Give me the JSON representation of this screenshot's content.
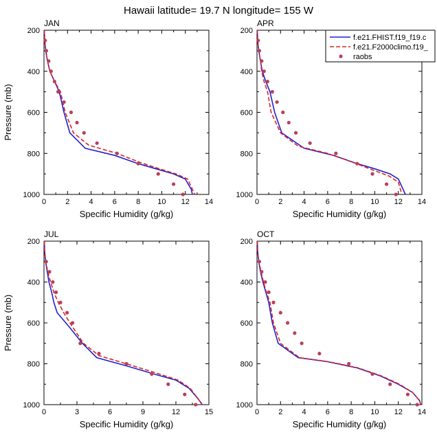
{
  "title": "Hawaii  latitude= 19.7 N longitude= 155 W",
  "legend": {
    "position": "top-right of APR panel",
    "entries": [
      {
        "label": "f.e21.FHIST.f19_f19.c",
        "color": "#1f1fd0",
        "style": "solid"
      },
      {
        "label": "f.e21.F2000climo.f19_",
        "color": "#dd2222",
        "style": "dashed"
      },
      {
        "label": "raobs",
        "color": "#b84058",
        "style": "dots"
      }
    ]
  },
  "chart_data": [
    {
      "type": "line",
      "panel_label": "JAN",
      "xlabel": "Specific Humidity (g/kg)",
      "ylabel": "Pressure (mb)",
      "xlim": [
        0,
        14
      ],
      "ylim": [
        1000,
        200
      ],
      "xticks": [
        "0",
        "2",
        "4",
        "6",
        "8",
        "10",
        "12",
        "14"
      ],
      "yticks": [
        "200",
        "400",
        "600",
        "800",
        "1000"
      ],
      "series": [
        {
          "name": "f.e21.FHIST.f19_f19.c",
          "points": [
            [
              0.03,
              200
            ],
            [
              0.06,
              250
            ],
            [
              0.15,
              300
            ],
            [
              0.3,
              350
            ],
            [
              0.5,
              400
            ],
            [
              0.9,
              450
            ],
            [
              1.3,
              500
            ],
            [
              1.7,
              600
            ],
            [
              2.2,
              700
            ],
            [
              3.5,
              775
            ],
            [
              6.0,
              810
            ],
            [
              8.0,
              850
            ],
            [
              9.5,
              875
            ],
            [
              11.0,
              900
            ],
            [
              12.0,
              925
            ],
            [
              12.5,
              975
            ],
            [
              12.6,
              1000
            ]
          ]
        },
        {
          "name": "f.e21.F2000climo.f19_",
          "points": [
            [
              0.03,
              200
            ],
            [
              0.06,
              250
            ],
            [
              0.15,
              300
            ],
            [
              0.3,
              350
            ],
            [
              0.5,
              400
            ],
            [
              0.9,
              450
            ],
            [
              1.4,
              500
            ],
            [
              1.8,
              600
            ],
            [
              2.5,
              700
            ],
            [
              3.8,
              760
            ],
            [
              6.2,
              800
            ],
            [
              8.2,
              845
            ],
            [
              9.8,
              875
            ],
            [
              11.2,
              900
            ],
            [
              12.2,
              925
            ],
            [
              12.6,
              975
            ],
            [
              12.8,
              1000
            ]
          ]
        },
        {
          "name": "raobs",
          "points": [
            [
              0.1,
              250
            ],
            [
              0.2,
              300
            ],
            [
              0.4,
              350
            ],
            [
              0.6,
              400
            ],
            [
              0.9,
              450
            ],
            [
              1.2,
              500
            ],
            [
              1.7,
              550
            ],
            [
              2.3,
              600
            ],
            [
              2.8,
              650
            ],
            [
              3.4,
              700
            ],
            [
              4.5,
              750
            ],
            [
              6.2,
              800
            ],
            [
              8.0,
              850
            ],
            [
              9.7,
              900
            ],
            [
              11.0,
              950
            ],
            [
              11.8,
              1000
            ]
          ]
        }
      ]
    },
    {
      "type": "line",
      "panel_label": "APR",
      "xlabel": "Specific Humidity (g/kg)",
      "ylabel": "",
      "xlim": [
        0,
        14
      ],
      "ylim": [
        1000,
        200
      ],
      "xticks": [
        "0",
        "2",
        "4",
        "6",
        "8",
        "10",
        "12",
        "14"
      ],
      "yticks": [
        "200",
        "400",
        "600",
        "800",
        "1000"
      ],
      "series": [
        {
          "name": "f.e21.FHIST.f19_f19.c",
          "points": [
            [
              0.03,
              200
            ],
            [
              0.06,
              250
            ],
            [
              0.15,
              300
            ],
            [
              0.3,
              350
            ],
            [
              0.45,
              400
            ],
            [
              0.75,
              450
            ],
            [
              1.1,
              500
            ],
            [
              1.5,
              600
            ],
            [
              2.1,
              700
            ],
            [
              4.0,
              775
            ],
            [
              6.5,
              810
            ],
            [
              8.5,
              850
            ],
            [
              10.0,
              875
            ],
            [
              11.3,
              900
            ],
            [
              12.0,
              925
            ],
            [
              12.4,
              975
            ],
            [
              12.6,
              1000
            ]
          ]
        },
        {
          "name": "f.e21.F2000climo.f19_",
          "points": [
            [
              0.03,
              200
            ],
            [
              0.06,
              250
            ],
            [
              0.15,
              300
            ],
            [
              0.3,
              350
            ],
            [
              0.4,
              400
            ],
            [
              0.6,
              450
            ],
            [
              0.9,
              500
            ],
            [
              1.2,
              600
            ],
            [
              2.0,
              700
            ],
            [
              3.5,
              765
            ],
            [
              6.0,
              800
            ],
            [
              8.2,
              845
            ],
            [
              9.8,
              880
            ],
            [
              11.2,
              910
            ],
            [
              12.0,
              940
            ],
            [
              12.3,
              1000
            ]
          ]
        },
        {
          "name": "raobs",
          "points": [
            [
              0.1,
              250
            ],
            [
              0.2,
              300
            ],
            [
              0.4,
              350
            ],
            [
              0.6,
              400
            ],
            [
              0.9,
              450
            ],
            [
              1.3,
              500
            ],
            [
              1.7,
              550
            ],
            [
              2.2,
              600
            ],
            [
              2.7,
              650
            ],
            [
              3.3,
              700
            ],
            [
              4.5,
              750
            ],
            [
              6.7,
              800
            ],
            [
              8.5,
              850
            ],
            [
              9.8,
              900
            ],
            [
              11.0,
              950
            ],
            [
              11.8,
              1000
            ]
          ]
        }
      ]
    },
    {
      "type": "line",
      "panel_label": "JUL",
      "xlabel": "Specific Humidity (g/kg)",
      "ylabel": "Pressure (mb)",
      "xlim": [
        0,
        15
      ],
      "ylim": [
        1000,
        200
      ],
      "xticks": [
        "0",
        "3",
        "6",
        "9",
        "12",
        "15"
      ],
      "yticks": [
        "200",
        "400",
        "600",
        "800",
        "1000"
      ],
      "series": [
        {
          "name": "f.e21.FHIST.f19_f19.c",
          "points": [
            [
              0.03,
              200
            ],
            [
              0.06,
              250
            ],
            [
              0.15,
              300
            ],
            [
              0.3,
              350
            ],
            [
              0.45,
              400
            ],
            [
              0.7,
              450
            ],
            [
              0.9,
              500
            ],
            [
              1.2,
              550
            ],
            [
              2.3,
              620
            ],
            [
              3.5,
              700
            ],
            [
              4.8,
              770
            ],
            [
              7.5,
              810
            ],
            [
              10.0,
              850
            ],
            [
              12.0,
              880
            ],
            [
              13.2,
              920
            ],
            [
              14.0,
              970
            ],
            [
              14.4,
              1000
            ]
          ]
        },
        {
          "name": "f.e21.F2000climo.f19_",
          "points": [
            [
              0.03,
              200
            ],
            [
              0.06,
              250
            ],
            [
              0.15,
              300
            ],
            [
              0.35,
              350
            ],
            [
              0.6,
              400
            ],
            [
              0.9,
              450
            ],
            [
              1.3,
              500
            ],
            [
              1.9,
              560
            ],
            [
              2.6,
              620
            ],
            [
              3.6,
              700
            ],
            [
              5.0,
              760
            ],
            [
              7.8,
              805
            ],
            [
              10.2,
              845
            ],
            [
              12.2,
              880
            ],
            [
              13.3,
              920
            ],
            [
              14.0,
              970
            ],
            [
              14.4,
              1000
            ]
          ]
        },
        {
          "name": "raobs",
          "points": [
            [
              0.2,
              300
            ],
            [
              0.5,
              350
            ],
            [
              0.8,
              400
            ],
            [
              1.1,
              450
            ],
            [
              1.5,
              500
            ],
            [
              2.1,
              550
            ],
            [
              2.6,
              600
            ],
            [
              3.3,
              700
            ],
            [
              5.0,
              750
            ],
            [
              7.5,
              800
            ],
            [
              9.8,
              850
            ],
            [
              11.3,
              900
            ],
            [
              12.8,
              950
            ],
            [
              13.8,
              1000
            ]
          ]
        }
      ]
    },
    {
      "type": "line",
      "panel_label": "OCT",
      "xlabel": "Specific Humidity (g/kg)",
      "ylabel": "",
      "xlim": [
        0,
        14
      ],
      "ylim": [
        1000,
        200
      ],
      "xticks": [
        "0",
        "2",
        "4",
        "6",
        "8",
        "10",
        "12",
        "14"
      ],
      "yticks": [
        "200",
        "400",
        "600",
        "800",
        "1000"
      ],
      "series": [
        {
          "name": "f.e21.FHIST.f19_f19.c",
          "points": [
            [
              0.03,
              200
            ],
            [
              0.06,
              250
            ],
            [
              0.15,
              300
            ],
            [
              0.3,
              350
            ],
            [
              0.5,
              400
            ],
            [
              0.75,
              450
            ],
            [
              1.0,
              500
            ],
            [
              1.3,
              600
            ],
            [
              1.8,
              700
            ],
            [
              3.5,
              770
            ],
            [
              6.0,
              790
            ],
            [
              8.5,
              820
            ],
            [
              10.5,
              860
            ],
            [
              12.0,
              900
            ],
            [
              13.2,
              940
            ],
            [
              13.8,
              980
            ],
            [
              13.9,
              1000
            ]
          ]
        },
        {
          "name": "f.e21.F2000climo.f19_",
          "points": [
            [
              0.03,
              200
            ],
            [
              0.06,
              250
            ],
            [
              0.15,
              300
            ],
            [
              0.35,
              350
            ],
            [
              0.55,
              400
            ],
            [
              0.8,
              450
            ],
            [
              1.1,
              500
            ],
            [
              1.4,
              600
            ],
            [
              2.0,
              700
            ],
            [
              3.6,
              770
            ],
            [
              6.1,
              790
            ],
            [
              8.6,
              820
            ],
            [
              10.6,
              860
            ],
            [
              12.1,
              900
            ],
            [
              13.2,
              940
            ],
            [
              13.8,
              980
            ],
            [
              13.9,
              1000
            ]
          ]
        },
        {
          "name": "raobs",
          "points": [
            [
              0.2,
              300
            ],
            [
              0.4,
              350
            ],
            [
              0.7,
              400
            ],
            [
              1.0,
              450
            ],
            [
              1.4,
              500
            ],
            [
              2.0,
              550
            ],
            [
              2.6,
              600
            ],
            [
              3.2,
              650
            ],
            [
              3.8,
              700
            ],
            [
              5.3,
              750
            ],
            [
              7.8,
              800
            ],
            [
              9.8,
              850
            ],
            [
              11.3,
              900
            ],
            [
              12.8,
              950
            ],
            [
              13.6,
              1000
            ]
          ]
        }
      ]
    }
  ]
}
